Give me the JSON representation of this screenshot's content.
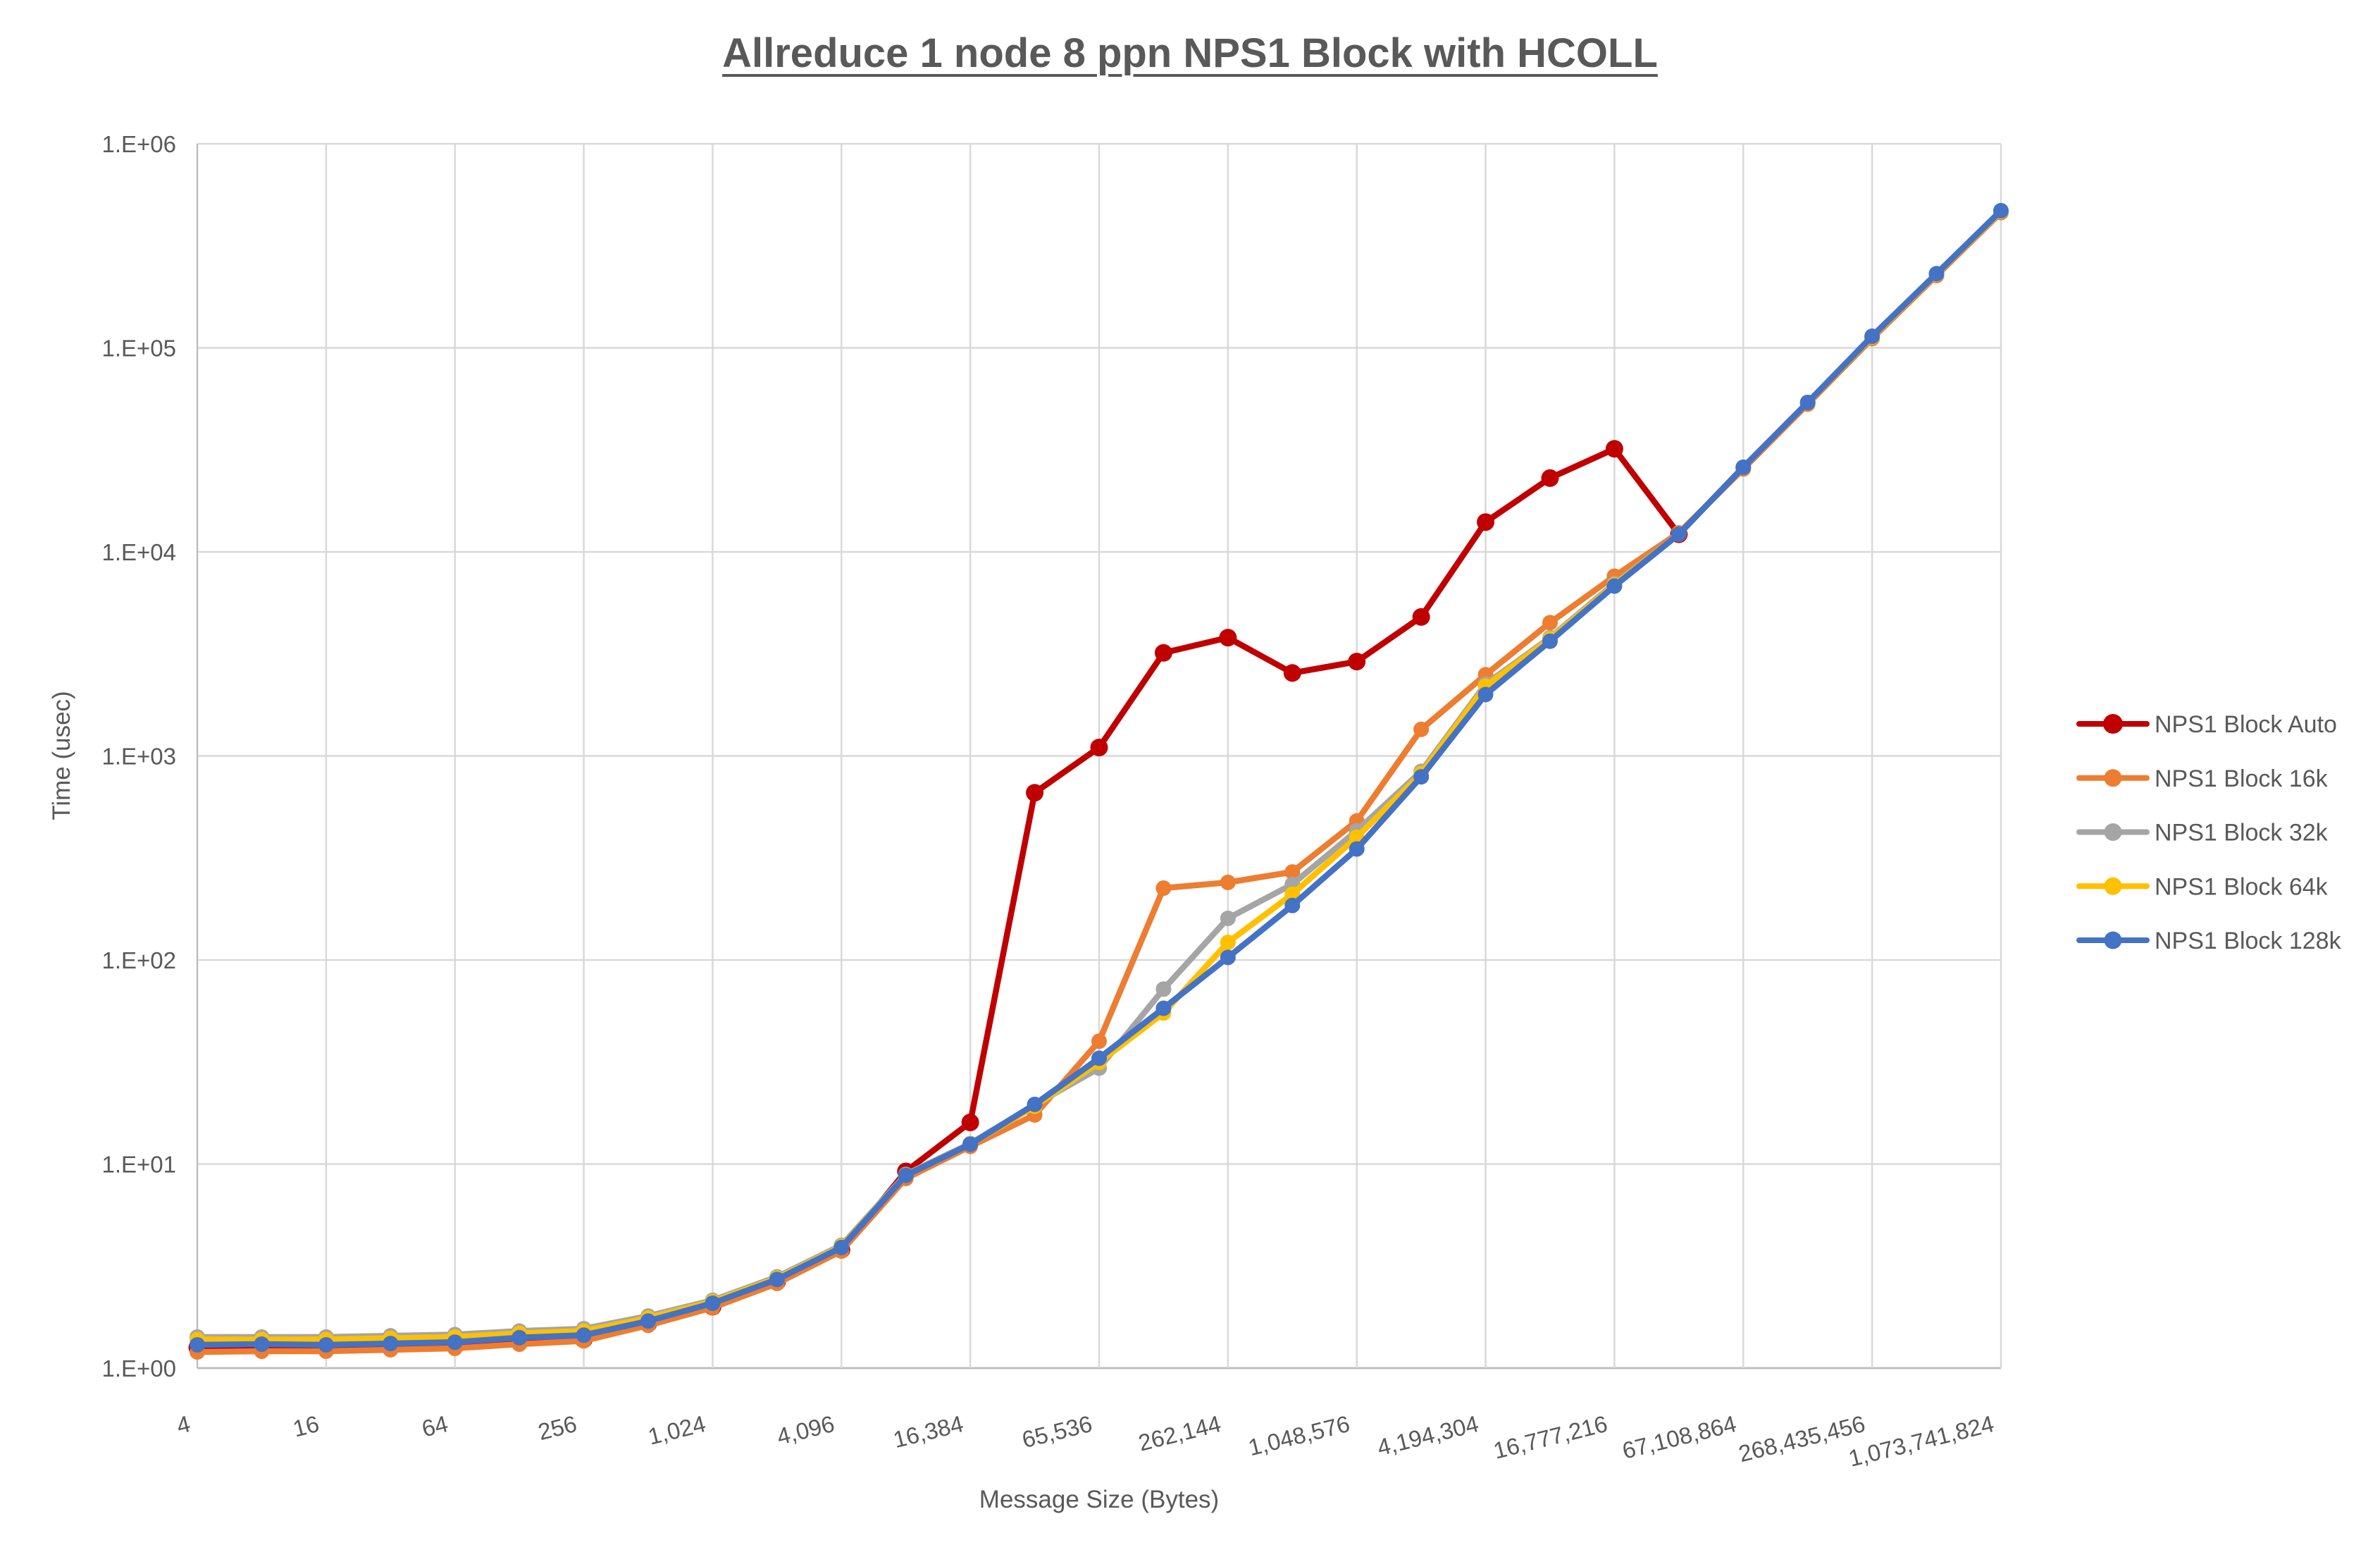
{
  "chart_data": {
    "type": "line",
    "title": "Allreduce 1 node 8 ppn NPS1 Block with HCOLL",
    "xlabel": "Message Size (Bytes)",
    "ylabel": "Time (usec)",
    "y_scale": "log10",
    "ylim": [
      1,
      1000000
    ],
    "y_tick_labels": [
      "1.E+00",
      "1.E+01",
      "1.E+02",
      "1.E+03",
      "1.E+04",
      "1.E+05",
      "1.E+06"
    ],
    "categories": [
      4,
      8,
      16,
      32,
      64,
      128,
      256,
      512,
      1024,
      2048,
      4096,
      8192,
      16384,
      32768,
      65536,
      131072,
      262144,
      524288,
      1048576,
      2097152,
      4194304,
      8388608,
      16777216,
      33554432,
      67108864,
      134217728,
      268435456,
      536870912,
      1073741824
    ],
    "x_tick_label_every": 2,
    "x_tick_labels": [
      "4",
      "16",
      "64",
      "256",
      "1,024",
      "4,096",
      "16,384",
      "65,536",
      "262,144",
      "1,048,576",
      "4,194,304",
      "16,777,216",
      "67,108,864",
      "268,435,456",
      "1,073,741,824"
    ],
    "grid": true,
    "legend_position": "right",
    "colors": {
      "grid": "#D9D9D9",
      "axis": "#BFBFBF",
      "text": "#595959"
    },
    "series": [
      {
        "name": "NPS1 Block Auto",
        "color": "#C00000",
        "values": [
          1.26,
          1.24,
          1.25,
          1.26,
          1.28,
          1.34,
          1.38,
          1.65,
          2.0,
          2.65,
          3.8,
          9.2,
          16,
          660,
          1100,
          3200,
          3800,
          2550,
          2900,
          4800,
          14000,
          23000,
          32000,
          12200,
          null,
          null,
          null,
          null,
          null
        ]
      },
      {
        "name": "NPS1 Block 16k",
        "color": "#ED7D31",
        "values": [
          1.2,
          1.21,
          1.21,
          1.23,
          1.25,
          1.31,
          1.36,
          1.62,
          1.98,
          2.6,
          3.75,
          8.5,
          12.2,
          17.4,
          40,
          225,
          240,
          270,
          480,
          1350,
          2500,
          4500,
          7600,
          12400,
          25500,
          53000,
          111000,
          226000,
          460000
        ]
      },
      {
        "name": "NPS1 Block 32k",
        "color": "#A5A5A5",
        "values": [
          1.42,
          1.42,
          1.42,
          1.44,
          1.46,
          1.52,
          1.56,
          1.8,
          2.15,
          2.8,
          4.0,
          8.9,
          12.6,
          19.5,
          29.5,
          72,
          160,
          235,
          430,
          840,
          2250,
          3800,
          7000,
          12200,
          26000,
          54000,
          113000,
          230000,
          466000
        ]
      },
      {
        "name": "NPS1 Block 64k",
        "color": "#FFC000",
        "values": [
          1.38,
          1.38,
          1.38,
          1.4,
          1.42,
          1.48,
          1.52,
          1.76,
          2.12,
          2.76,
          3.95,
          8.8,
          12.5,
          19.2,
          31.5,
          55,
          122,
          210,
          400,
          820,
          2200,
          3750,
          6900,
          12200,
          26000,
          54000,
          113000,
          230000,
          466000
        ]
      },
      {
        "name": "NPS1 Block 128k",
        "color": "#4472C4",
        "values": [
          1.3,
          1.31,
          1.3,
          1.32,
          1.34,
          1.41,
          1.45,
          1.7,
          2.08,
          2.72,
          3.9,
          8.8,
          12.5,
          19.6,
          33,
          58,
          103,
          185,
          350,
          790,
          2000,
          3650,
          6800,
          12200,
          26000,
          54000,
          114000,
          231000,
          470000
        ]
      }
    ]
  }
}
